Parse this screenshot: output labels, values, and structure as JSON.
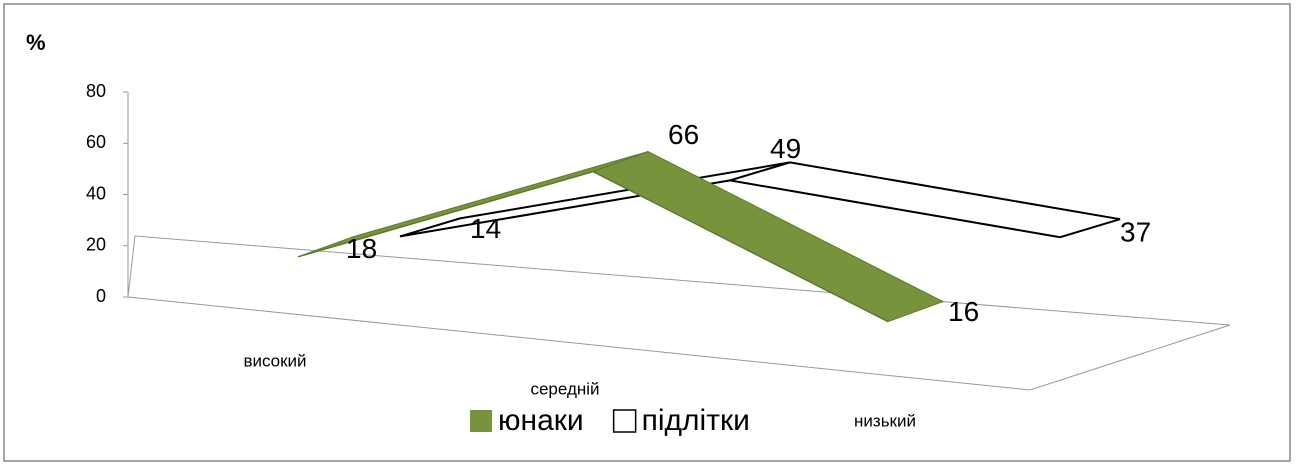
{
  "chart_data": {
    "type": "line3d",
    "title": "%",
    "categories": [
      "високий",
      "середній",
      "низький"
    ],
    "series": [
      {
        "name": "юнаки",
        "color": "#77933c",
        "values": [
          18,
          66,
          16
        ]
      },
      {
        "name": "підлітки",
        "color": "#ffffff",
        "values": [
          14,
          49,
          37
        ]
      }
    ],
    "ylim": [
      0,
      80
    ],
    "yticks": [
      0,
      20,
      40,
      60,
      80
    ],
    "legend": "bottom"
  }
}
